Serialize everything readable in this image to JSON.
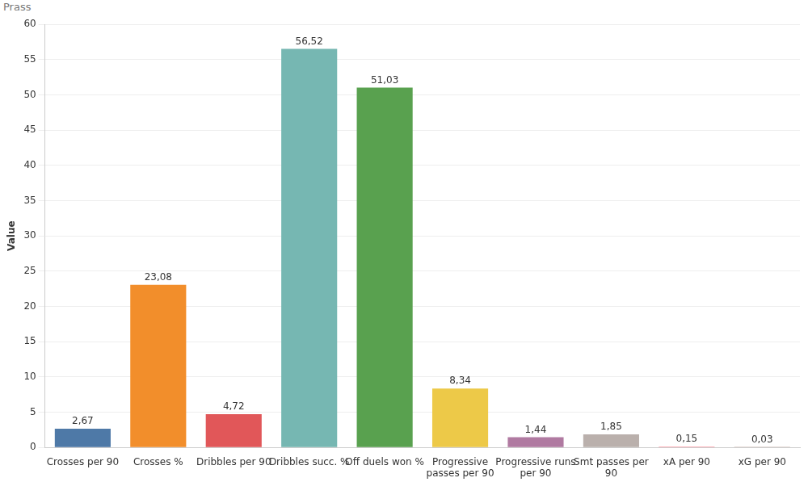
{
  "chart_data": {
    "type": "bar",
    "title": "Prass",
    "y_label": "Value",
    "categories": [
      "Crosses per 90",
      "Crosses %",
      "Dribbles per 90",
      "Dribbles succ. %",
      "Off duels won %",
      "Progressive passes per 90",
      "Progressive runs per 90",
      "Smt passes per 90",
      "xA per 90",
      "xG per 90"
    ],
    "values": [
      2.67,
      23.08,
      4.72,
      56.52,
      51.03,
      8.34,
      1.44,
      1.85,
      0.15,
      0.03
    ],
    "value_labels": [
      "2,67",
      "23,08",
      "4,72",
      "56,52",
      "51,03",
      "8,34",
      "1,44",
      "1,85",
      "0,15",
      "0,03"
    ],
    "colors": [
      "#4e79a7",
      "#f28e2b",
      "#e15759",
      "#76b7b2",
      "#59a14f",
      "#edc948",
      "#b07aa1",
      "#bab0ac",
      "#ff9da7",
      "#9c755f"
    ],
    "ylim": [
      0,
      60
    ],
    "yticks": [
      0,
      5,
      10,
      15,
      20,
      25,
      30,
      35,
      40,
      45,
      50,
      55,
      60
    ],
    "grid": true,
    "data_labels": true
  }
}
